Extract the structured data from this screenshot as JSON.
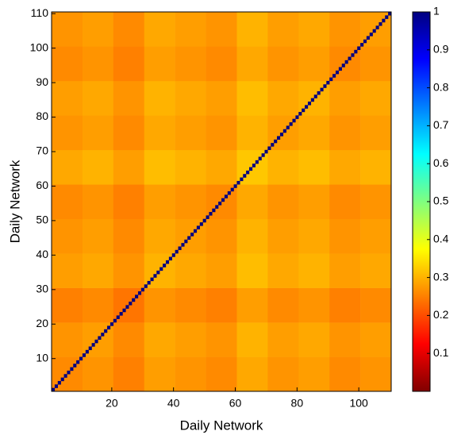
{
  "chart_data": {
    "type": "heatmap",
    "xlabel": "Daily Network",
    "ylabel": "Daily Network",
    "xlim": [
      0.5,
      110.5
    ],
    "ylim": [
      0.5,
      110.5
    ],
    "xticks": [
      20,
      40,
      60,
      80,
      100
    ],
    "yticks": [
      10,
      20,
      30,
      40,
      50,
      60,
      70,
      80,
      90,
      100,
      110
    ],
    "clim": [
      0,
      1
    ],
    "cticks": [
      0.1,
      0.2,
      0.3,
      0.4,
      0.5,
      0.6,
      0.7,
      0.8,
      0.9,
      1
    ],
    "colormap": "jet-reversed",
    "matrix": [
      [
        0.26,
        0.27,
        0.25,
        0.28,
        0.27,
        0.26,
        0.29,
        0.27,
        0.28,
        0.26,
        0.27
      ],
      [
        0.27,
        0.28,
        0.26,
        0.29,
        0.28,
        0.27,
        0.3,
        0.28,
        0.29,
        0.27,
        0.28
      ],
      [
        0.25,
        0.26,
        0.24,
        0.27,
        0.26,
        0.25,
        0.28,
        0.26,
        0.27,
        0.25,
        0.26
      ],
      [
        0.28,
        0.29,
        0.27,
        0.3,
        0.29,
        0.28,
        0.31,
        0.29,
        0.3,
        0.28,
        0.29
      ],
      [
        0.27,
        0.28,
        0.26,
        0.29,
        0.28,
        0.27,
        0.3,
        0.28,
        0.29,
        0.27,
        0.28
      ],
      [
        0.26,
        0.27,
        0.25,
        0.28,
        0.27,
        0.26,
        0.29,
        0.27,
        0.28,
        0.26,
        0.27
      ],
      [
        0.29,
        0.3,
        0.28,
        0.31,
        0.3,
        0.29,
        0.32,
        0.3,
        0.31,
        0.29,
        0.3
      ],
      [
        0.27,
        0.28,
        0.26,
        0.29,
        0.28,
        0.27,
        0.3,
        0.28,
        0.29,
        0.27,
        0.28
      ],
      [
        0.28,
        0.29,
        0.27,
        0.3,
        0.29,
        0.28,
        0.31,
        0.29,
        0.3,
        0.28,
        0.29
      ],
      [
        0.26,
        0.27,
        0.25,
        0.28,
        0.27,
        0.26,
        0.29,
        0.27,
        0.28,
        0.26,
        0.27
      ],
      [
        0.27,
        0.28,
        0.26,
        0.29,
        0.28,
        0.27,
        0.3,
        0.28,
        0.29,
        0.27,
        0.28
      ]
    ],
    "diagonal": [
      1,
      1,
      1,
      1,
      1,
      1,
      1,
      1,
      1,
      1,
      1,
      1,
      1,
      1,
      1,
      1,
      1,
      1,
      1,
      1,
      1,
      1,
      1,
      1,
      1,
      1,
      1,
      1,
      1,
      1,
      1,
      1,
      1,
      1,
      1,
      1,
      1,
      1,
      1,
      1,
      1,
      1,
      1,
      1,
      1,
      1,
      1,
      1,
      1,
      1,
      1,
      1,
      1,
      1,
      1,
      1,
      1,
      1,
      1,
      1,
      1,
      1,
      1,
      1,
      1,
      1,
      1,
      1,
      1,
      1,
      1,
      1,
      1,
      1,
      1,
      1,
      1,
      1,
      1,
      1,
      1,
      1,
      1,
      1,
      1,
      1,
      1,
      1,
      1,
      1,
      1,
      1,
      1,
      1,
      1,
      1,
      1,
      1,
      1,
      1,
      1,
      1,
      1,
      1,
      1,
      1,
      1,
      1,
      1,
      1
    ]
  }
}
